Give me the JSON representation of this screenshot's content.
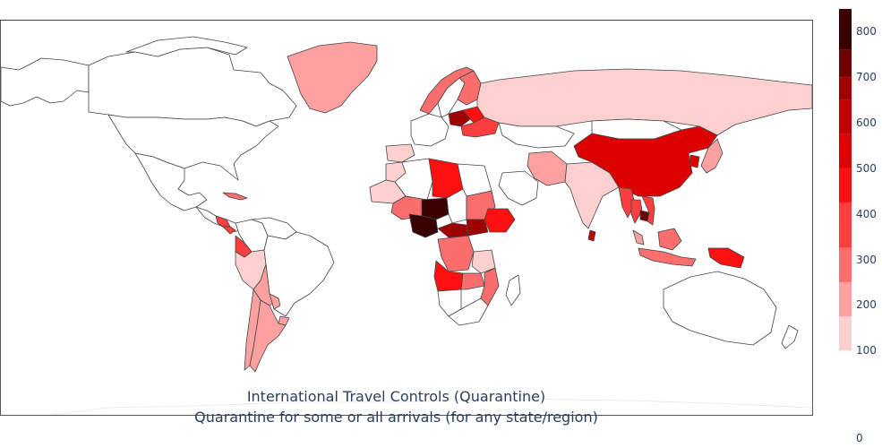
{
  "figure": {
    "title_line_1": "International Travel Controls (Quarantine)",
    "title_line_2": "Quarantine for some or all arrivals (for any state/region)"
  },
  "colorbar": {
    "ticks": [
      {
        "value": 800,
        "label": "800"
      },
      {
        "value": 700,
        "label": "700"
      },
      {
        "value": 600,
        "label": "600"
      },
      {
        "value": 500,
        "label": "500"
      },
      {
        "value": 400,
        "label": "400"
      },
      {
        "value": 300,
        "label": "300"
      },
      {
        "value": 200,
        "label": "200"
      },
      {
        "value": 100,
        "label": "100"
      },
      {
        "value": 0,
        "label": "0"
      }
    ],
    "bins": [
      {
        "from": 0,
        "to": 100,
        "color": "#ffffff"
      },
      {
        "from": 100,
        "to": 175,
        "color": "#fdd0d0"
      },
      {
        "from": 175,
        "to": 250,
        "color": "#fca0a0"
      },
      {
        "from": 250,
        "to": 325,
        "color": "#fb6e6e"
      },
      {
        "from": 325,
        "to": 425,
        "color": "#fc3e3e"
      },
      {
        "from": 425,
        "to": 500,
        "color": "#ff1010"
      },
      {
        "from": 500,
        "to": 575,
        "color": "#dd0000"
      },
      {
        "from": 575,
        "to": 650,
        "color": "#c00000"
      },
      {
        "from": 650,
        "to": 700,
        "color": "#a00000"
      },
      {
        "from": 700,
        "to": 760,
        "color": "#6e0000"
      },
      {
        "from": 760,
        "to": 850,
        "color": "#3a0000"
      }
    ],
    "range": [
      0,
      850
    ]
  },
  "map": {
    "projection": "equirectangular",
    "regions": [
      {
        "name": "Greenland",
        "value": 190
      },
      {
        "name": "United States",
        "value": 0
      },
      {
        "name": "Canada",
        "value": 0
      },
      {
        "name": "Alaska",
        "value": 0
      },
      {
        "name": "Mexico",
        "value": 0
      },
      {
        "name": "Cuba",
        "value": 290
      },
      {
        "name": "Nicaragua",
        "value": 350
      },
      {
        "name": "Costa Rica",
        "value": 350
      },
      {
        "name": "Panama",
        "value": 350
      },
      {
        "name": "Colombia",
        "value": 0
      },
      {
        "name": "Venezuela",
        "value": 0
      },
      {
        "name": "Ecuador",
        "value": 330
      },
      {
        "name": "Peru",
        "value": 120
      },
      {
        "name": "Brazil",
        "value": 0
      },
      {
        "name": "Bolivia",
        "value": 230
      },
      {
        "name": "Chile",
        "value": 230
      },
      {
        "name": "Argentina",
        "value": 200
      },
      {
        "name": "Paraguay",
        "value": 200
      },
      {
        "name": "Uruguay",
        "value": 200
      },
      {
        "name": "Russia",
        "value": 130
      },
      {
        "name": "Norway",
        "value": 320
      },
      {
        "name": "Sweden",
        "value": 0
      },
      {
        "name": "Finland",
        "value": 300
      },
      {
        "name": "Belarus",
        "value": 450
      },
      {
        "name": "Poland",
        "value": 650
      },
      {
        "name": "Ukraine",
        "value": 350
      },
      {
        "name": "Spain",
        "value": 120
      },
      {
        "name": "Morocco",
        "value": 110
      },
      {
        "name": "Algeria",
        "value": 0
      },
      {
        "name": "Libya",
        "value": 480
      },
      {
        "name": "Egypt",
        "value": 0
      },
      {
        "name": "Mauritania",
        "value": 120
      },
      {
        "name": "Mali",
        "value": 290
      },
      {
        "name": "Niger",
        "value": 790
      },
      {
        "name": "Nigeria",
        "value": 790
      },
      {
        "name": "Chad",
        "value": 0
      },
      {
        "name": "Sudan",
        "value": 260
      },
      {
        "name": "Ethiopia",
        "value": 480
      },
      {
        "name": "Central African Republic",
        "value": 690
      },
      {
        "name": "South Sudan",
        "value": 690
      },
      {
        "name": "DR Congo",
        "value": 250
      },
      {
        "name": "Angola",
        "value": 470
      },
      {
        "name": "Tanzania",
        "value": 130
      },
      {
        "name": "Zambia",
        "value": 250
      },
      {
        "name": "Mozambique",
        "value": 250
      },
      {
        "name": "Namibia",
        "value": 0
      },
      {
        "name": "South Africa",
        "value": 0
      },
      {
        "name": "Madagascar",
        "value": 0
      },
      {
        "name": "Saudi Arabia",
        "value": 0
      },
      {
        "name": "Iran",
        "value": 220
      },
      {
        "name": "Kazakhstan",
        "value": 0
      },
      {
        "name": "Mongolia",
        "value": 0
      },
      {
        "name": "China",
        "value": 560
      },
      {
        "name": "India",
        "value": 120
      },
      {
        "name": "Myanmar",
        "value": 330
      },
      {
        "name": "Thailand",
        "value": 330
      },
      {
        "name": "Vietnam",
        "value": 380
      },
      {
        "name": "Cambodia",
        "value": 700
      },
      {
        "name": "Malaysia",
        "value": 240
      },
      {
        "name": "Indonesia",
        "value": 270
      },
      {
        "name": "Papua New Guinea",
        "value": 450
      },
      {
        "name": "Japan",
        "value": 200
      },
      {
        "name": "South Korea",
        "value": 560
      },
      {
        "name": "Sri Lanka",
        "value": 600
      },
      {
        "name": "Australia",
        "value": 0
      },
      {
        "name": "New Zealand",
        "value": 0
      }
    ]
  }
}
